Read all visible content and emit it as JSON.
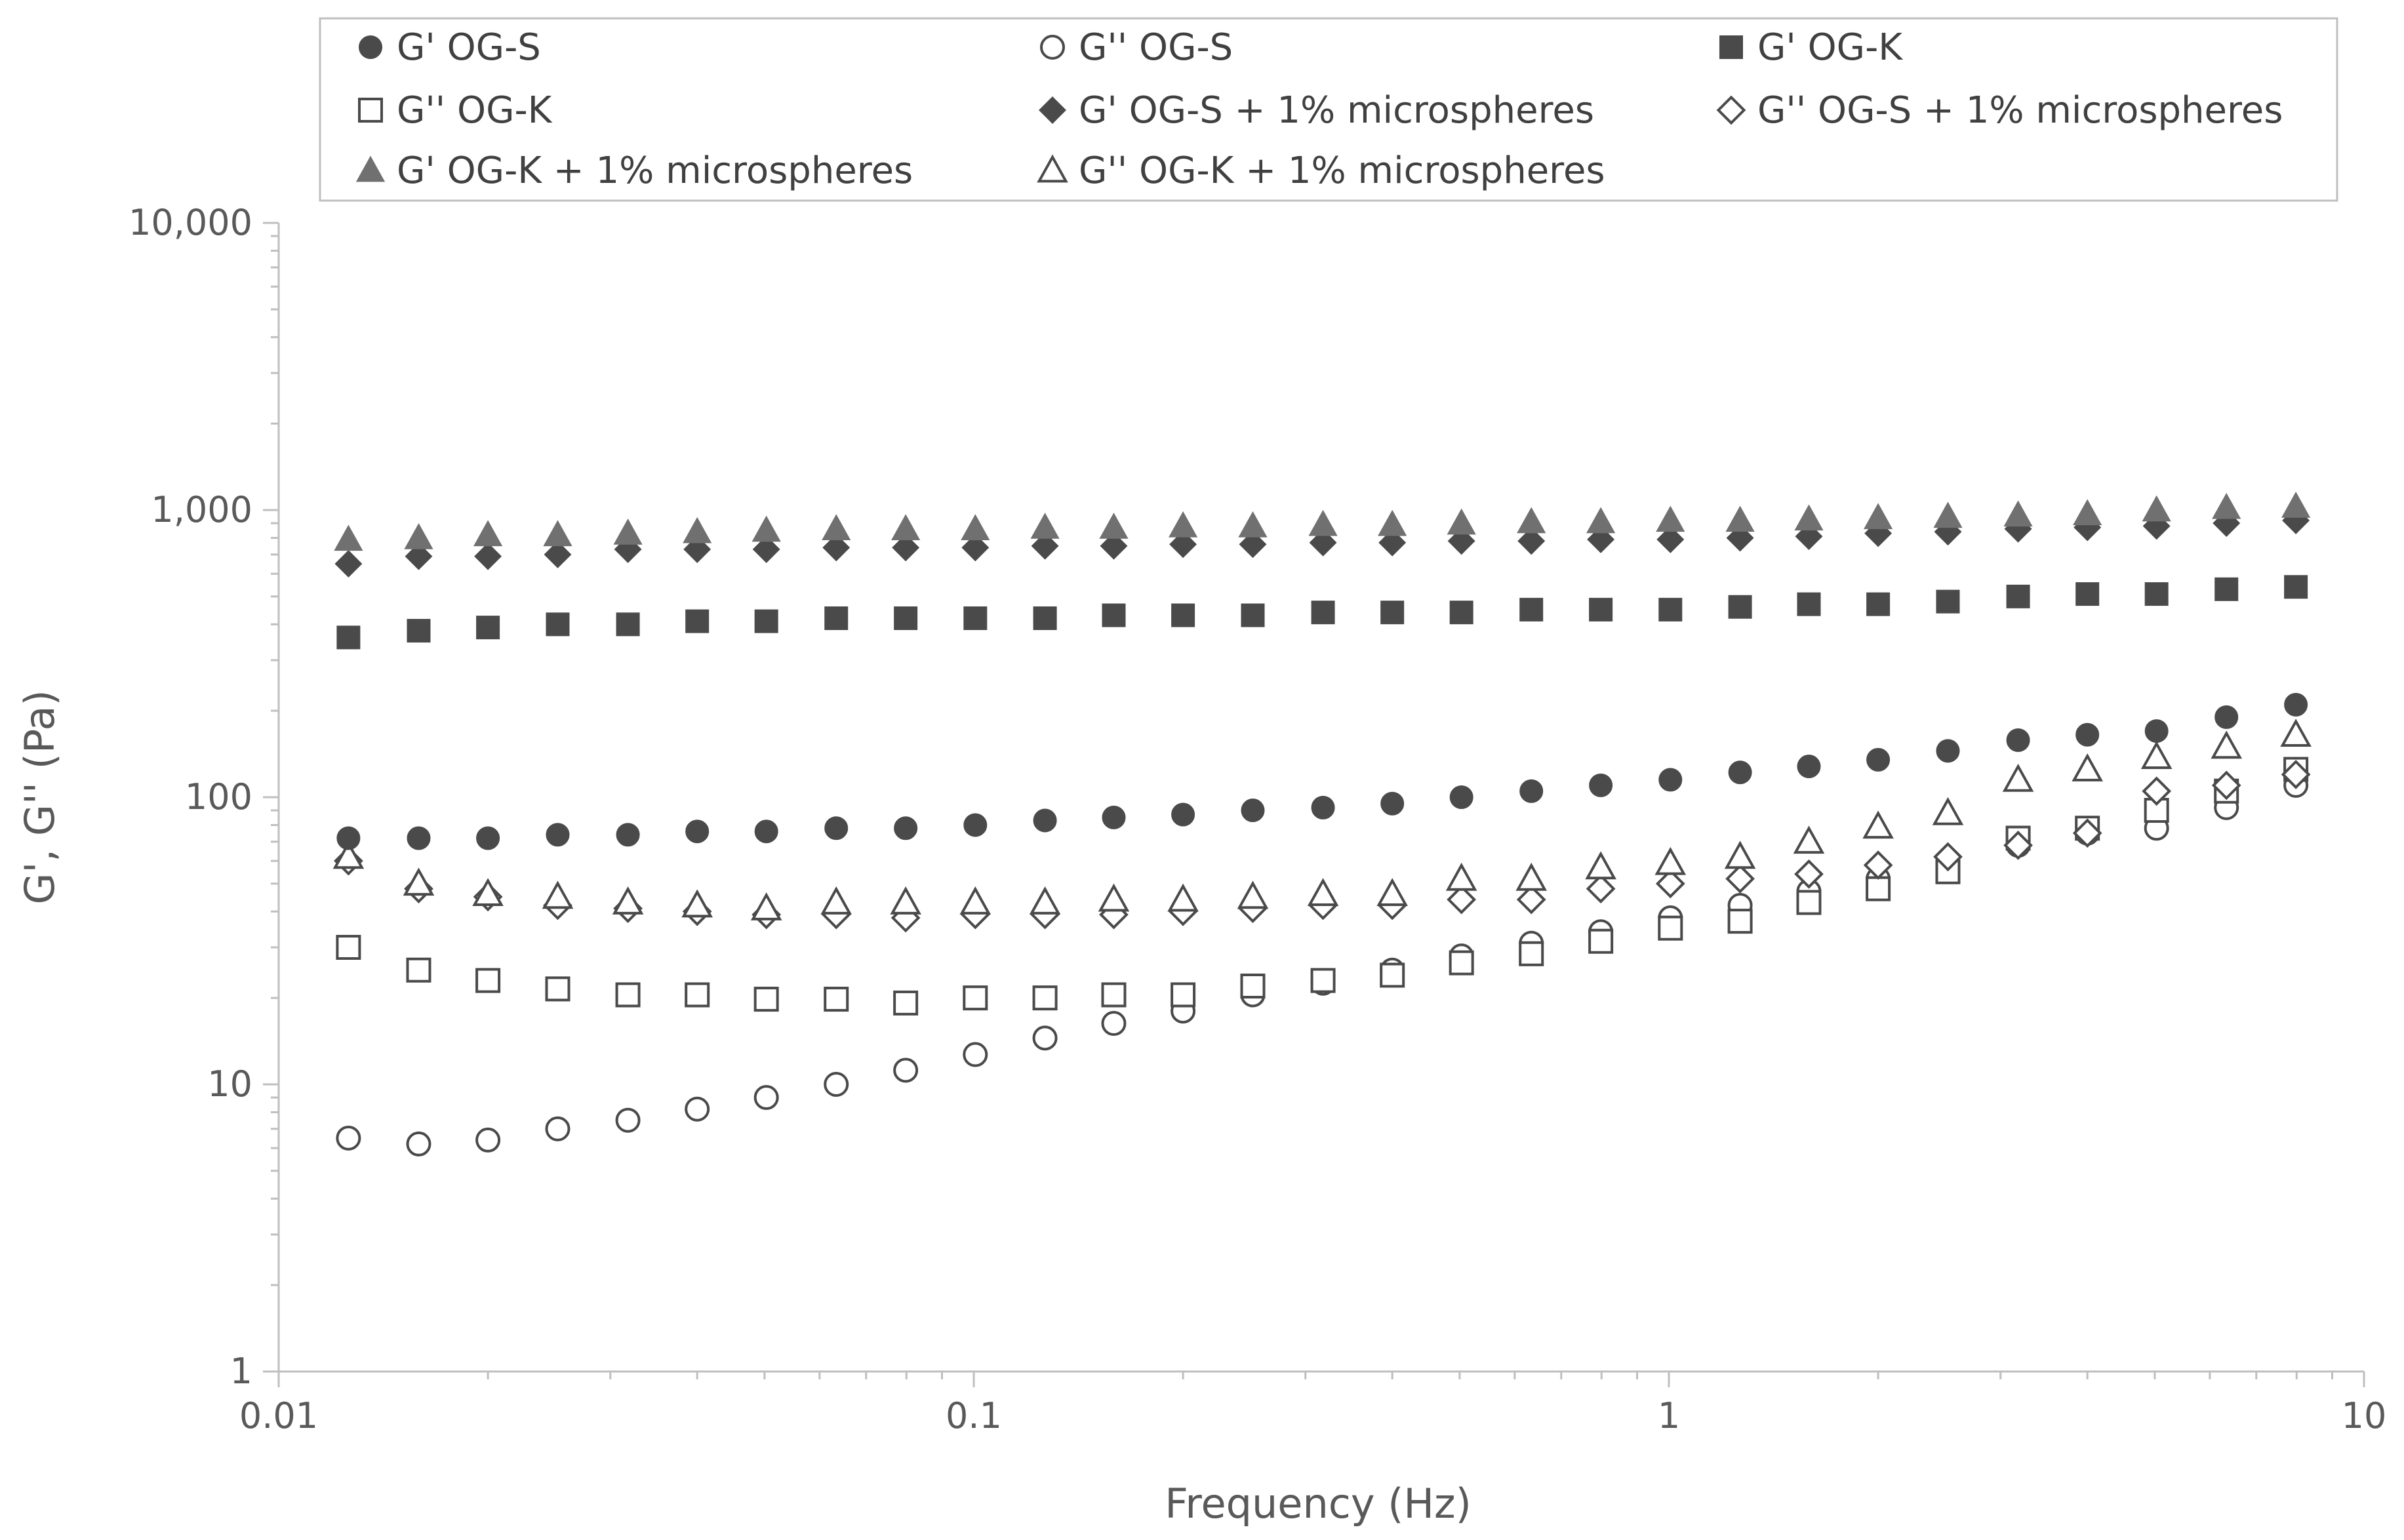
{
  "chart_data": {
    "type": "scatter",
    "x_scale": "log",
    "y_scale": "log",
    "xlabel": "Frequency (Hz)",
    "ylabel": "G', G'' (Pa)",
    "xlim": [
      0.01,
      10
    ],
    "ylim": [
      1,
      10000
    ],
    "x_ticks": [
      "0.01",
      "0.1",
      "1",
      "10"
    ],
    "y_ticks": [
      "1",
      "10",
      "100",
      "1,000",
      "10,000"
    ],
    "grid": false,
    "legend_position": "top",
    "x": [
      0.0126,
      0.0159,
      0.02,
      0.0252,
      0.0318,
      0.04,
      0.0503,
      0.0634,
      0.0798,
      0.1005,
      0.1266,
      0.159,
      0.2,
      0.252,
      0.318,
      0.4,
      0.503,
      0.634,
      0.798,
      1.005,
      1.266,
      1.59,
      2.0,
      2.52,
      3.18,
      4.0,
      5.03,
      6.34,
      7.98
    ],
    "series": [
      {
        "name": "G' OG-S",
        "marker": "circle",
        "fill": "filled",
        "color": "#4a4a4a",
        "values": [
          72,
          72,
          72,
          74,
          74,
          76,
          76,
          78,
          78,
          80,
          83,
          85,
          87,
          90,
          92,
          95,
          100,
          105,
          110,
          115,
          122,
          128,
          135,
          145,
          158,
          165,
          170,
          190,
          210
        ]
      },
      {
        "name": "G'' OG-S",
        "marker": "circle",
        "fill": "open",
        "color": "#4a4a4a",
        "values": [
          6.5,
          6.2,
          6.4,
          7.0,
          7.5,
          8.2,
          9.0,
          10,
          11.2,
          12.7,
          14.5,
          16.3,
          18,
          20.5,
          22.5,
          25,
          28,
          31,
          34,
          38,
          42,
          47,
          52,
          58,
          68,
          75,
          78,
          92,
          110
        ]
      },
      {
        "name": "G' OG-K",
        "marker": "square",
        "fill": "filled",
        "color": "#4a4a4a",
        "values": [
          360,
          380,
          390,
          400,
          400,
          410,
          410,
          420,
          420,
          420,
          420,
          430,
          430,
          430,
          440,
          440,
          440,
          450,
          450,
          450,
          460,
          470,
          470,
          480,
          500,
          510,
          510,
          530,
          540
        ]
      },
      {
        "name": "G'' OG-K",
        "marker": "square",
        "fill": "open",
        "color": "#4a4a4a",
        "values": [
          30,
          25,
          23,
          21.5,
          20.5,
          20.5,
          19.8,
          19.8,
          19.2,
          20,
          20,
          20.5,
          20.5,
          22,
          23,
          24,
          26.5,
          28.5,
          31.5,
          35,
          37,
          43,
          48,
          55,
          72,
          78,
          90,
          105,
          125
        ]
      },
      {
        "name": "G' OG-S + 1% microspheres",
        "marker": "diamond",
        "fill": "filled",
        "color": "#4a4a4a",
        "values": [
          650,
          690,
          690,
          700,
          730,
          730,
          730,
          740,
          740,
          740,
          750,
          750,
          760,
          760,
          770,
          770,
          780,
          780,
          790,
          790,
          800,
          810,
          830,
          840,
          860,
          870,
          880,
          900,
          920
        ]
      },
      {
        "name": "G'' OG-S + 1% microspheres",
        "marker": "diamond",
        "fill": "open",
        "color": "#4a4a4a",
        "values": [
          60,
          48,
          45,
          42,
          41,
          40,
          39,
          39,
          38,
          39,
          39,
          39,
          40,
          41,
          42,
          42,
          44,
          44,
          48,
          50,
          52,
          54,
          58,
          62,
          68,
          75,
          105,
          110,
          120
        ]
      },
      {
        "name": "G' OG-K + 1% microspheres",
        "marker": "triangle",
        "fill": "filled",
        "color": "#707070",
        "values": [
          790,
          800,
          820,
          820,
          830,
          840,
          850,
          860,
          860,
          860,
          870,
          870,
          880,
          880,
          890,
          890,
          900,
          910,
          910,
          920,
          920,
          930,
          940,
          950,
          960,
          970,
          1000,
          1020,
          1030
        ]
      },
      {
        "name": "G'' OG-K + 1% microspheres",
        "marker": "triangle",
        "fill": "open",
        "color": "#4a4a4a",
        "values": [
          62,
          50,
          46,
          45,
          43,
          42,
          41,
          43,
          43,
          43,
          43,
          44,
          44,
          45,
          46,
          46,
          52,
          52,
          57,
          59,
          62,
          70,
          79,
          88,
          115,
          125,
          138,
          150,
          165
        ]
      }
    ]
  }
}
